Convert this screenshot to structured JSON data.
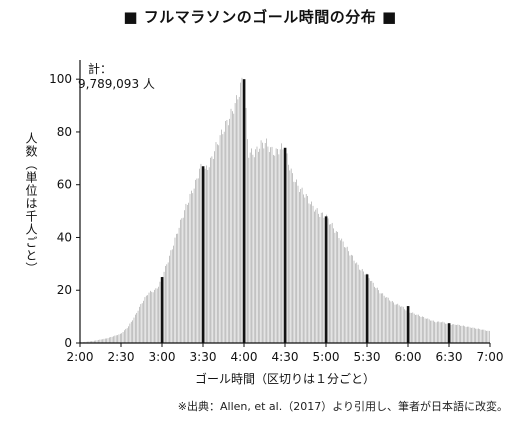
{
  "chart_data": {
    "type": "bar",
    "title": "■ フルマラソンのゴール時間の分布 ■",
    "ylabel": "人数（単位は千人ごと）",
    "xlabel": "ゴール時間（区切りは１分ごと）",
    "annotation_total_label": "計：",
    "annotation_total_value": "9,789,093 人",
    "source": "※出典：Allen, et al.（2017）より引用し、筆者が日本語に改変。",
    "ylim": [
      0,
      105
    ],
    "y_ticks": [
      "0",
      "20",
      "40",
      "60",
      "80",
      "100"
    ],
    "x_ticks": [
      "2:00",
      "2:30",
      "3:00",
      "3:30",
      "4:00",
      "4:30",
      "5:00",
      "5:30",
      "6:00",
      "6:30",
      "7:00"
    ],
    "x_range_minutes": [
      120,
      420
    ],
    "bar_color": "#a6a6a6",
    "highlight_color": "#111111",
    "profile": [
      [
        120,
        0.2
      ],
      [
        130,
        0.8
      ],
      [
        140,
        1.8
      ],
      [
        150,
        3.5
      ],
      [
        155,
        6
      ],
      [
        160,
        10
      ],
      [
        165,
        15
      ],
      [
        170,
        19
      ],
      [
        175,
        20
      ],
      [
        178,
        22
      ],
      [
        180,
        25
      ],
      [
        185,
        32
      ],
      [
        190,
        40
      ],
      [
        195,
        48
      ],
      [
        200,
        55
      ],
      [
        205,
        61
      ],
      [
        208,
        67
      ],
      [
        210,
        64
      ],
      [
        215,
        68
      ],
      [
        220,
        75
      ],
      [
        225,
        81
      ],
      [
        230,
        86
      ],
      [
        234,
        91
      ],
      [
        237,
        96
      ],
      [
        239,
        100
      ],
      [
        241,
        92
      ],
      [
        243,
        72
      ],
      [
        245,
        72
      ],
      [
        248,
        72
      ],
      [
        252,
        75
      ],
      [
        256,
        76
      ],
      [
        260,
        73
      ],
      [
        263,
        72
      ],
      [
        267,
        74
      ],
      [
        270,
        73
      ],
      [
        275,
        64
      ],
      [
        280,
        59
      ],
      [
        285,
        56
      ],
      [
        290,
        52
      ],
      [
        295,
        49
      ],
      [
        300,
        48
      ],
      [
        305,
        44
      ],
      [
        310,
        40
      ],
      [
        315,
        36
      ],
      [
        320,
        32
      ],
      [
        325,
        28
      ],
      [
        330,
        26
      ],
      [
        335,
        22
      ],
      [
        340,
        19
      ],
      [
        345,
        17
      ],
      [
        350,
        15
      ],
      [
        355,
        14
      ],
      [
        360,
        12
      ],
      [
        365,
        11
      ],
      [
        370,
        10
      ],
      [
        375,
        9
      ],
      [
        380,
        8
      ],
      [
        385,
        8
      ],
      [
        390,
        7
      ],
      [
        395,
        7
      ],
      [
        400,
        6.5
      ],
      [
        405,
        6
      ],
      [
        410,
        5.5
      ],
      [
        415,
        5
      ],
      [
        419,
        4.5
      ]
    ],
    "highlights": [
      {
        "minute": 180,
        "value": 25
      },
      {
        "minute": 210,
        "value": 67
      },
      {
        "minute": 240,
        "value": 100
      },
      {
        "minute": 270,
        "value": 74
      },
      {
        "minute": 300,
        "value": 48
      },
      {
        "minute": 330,
        "value": 26
      },
      {
        "minute": 360,
        "value": 14
      },
      {
        "minute": 390,
        "value": 7.5
      }
    ]
  }
}
